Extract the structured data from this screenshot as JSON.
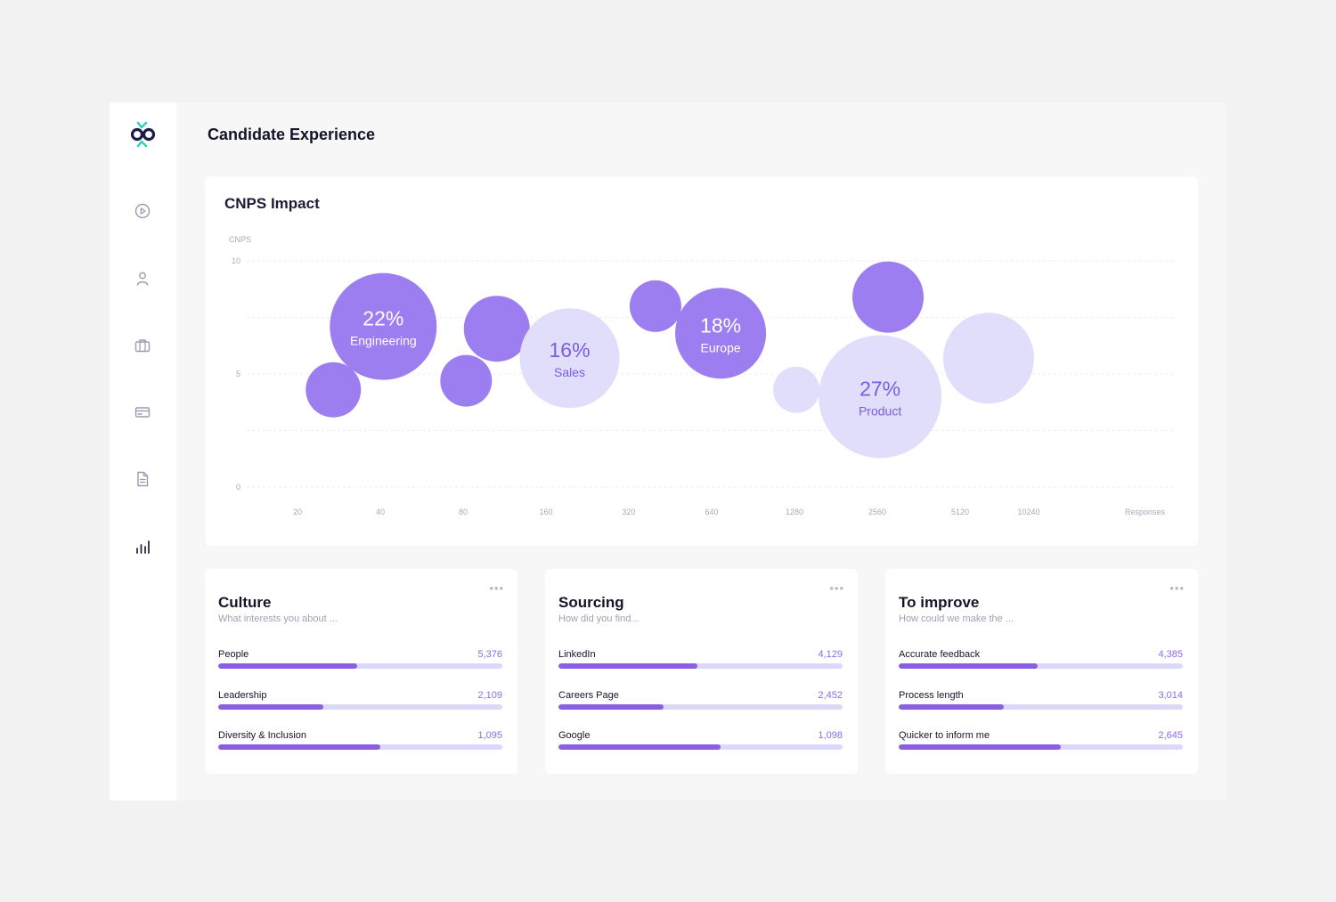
{
  "header": {
    "title": "Candidate Experience"
  },
  "sidebar": {
    "items": [
      {
        "name": "play-circle-icon",
        "active": false
      },
      {
        "name": "user-icon",
        "active": false
      },
      {
        "name": "briefcase-icon",
        "active": false
      },
      {
        "name": "credit-card-icon",
        "active": false
      },
      {
        "name": "document-icon",
        "active": false
      },
      {
        "name": "bar-chart-icon",
        "active": true
      }
    ]
  },
  "colors": {
    "accent": "#8a5fe3",
    "bubble_dark": "#9d7ef0",
    "bubble_light": "#e1defc",
    "track": "#dcd8fb"
  },
  "chart_data": {
    "type": "bubble",
    "title": "CNPS Impact",
    "ylabel": "CNPS",
    "xlabel": "Responses",
    "ylim": [
      0,
      10
    ],
    "y_ticks": [
      "10",
      "5",
      "0"
    ],
    "x_scale": "log2",
    "x_ticks": [
      "20",
      "40",
      "80",
      "160",
      "320",
      "640",
      "1280",
      "2560",
      "5120",
      "10240"
    ],
    "grid": true,
    "bubbles": [
      {
        "x": 27,
        "y": 4.3,
        "size": 31,
        "shade": "dark",
        "pct": "",
        "label": ""
      },
      {
        "x": 41,
        "y": 7.1,
        "size": 60,
        "shade": "dark",
        "pct": "22%",
        "label": "Engineering"
      },
      {
        "x": 82,
        "y": 4.7,
        "size": 29,
        "shade": "dark",
        "pct": "",
        "label": ""
      },
      {
        "x": 106,
        "y": 7.0,
        "size": 37,
        "shade": "dark",
        "pct": "",
        "label": ""
      },
      {
        "x": 195,
        "y": 5.7,
        "size": 56,
        "shade": "light",
        "pct": "16%",
        "label": "Sales"
      },
      {
        "x": 400,
        "y": 8.0,
        "size": 29,
        "shade": "dark",
        "pct": "",
        "label": ""
      },
      {
        "x": 690,
        "y": 6.8,
        "size": 51,
        "shade": "dark",
        "pct": "18%",
        "label": "Europe"
      },
      {
        "x": 1300,
        "y": 4.3,
        "size": 26,
        "shade": "light",
        "pct": "",
        "label": ""
      },
      {
        "x": 2620,
        "y": 4.0,
        "size": 69,
        "shade": "light",
        "pct": "27%",
        "label": "Product"
      },
      {
        "x": 2800,
        "y": 8.4,
        "size": 40,
        "shade": "dark",
        "pct": "",
        "label": ""
      },
      {
        "x": 6500,
        "y": 5.7,
        "size": 51,
        "shade": "light",
        "pct": "",
        "label": ""
      }
    ]
  },
  "cards": [
    {
      "title": "Culture",
      "subtitle": "What interests you about ...",
      "more": "•••",
      "rows": [
        {
          "label": "People",
          "value": "5,376",
          "progress": 0.49
        },
        {
          "label": "Leadership",
          "value": "2,109",
          "progress": 0.37
        },
        {
          "label": "Diversity & Inclusion",
          "value": "1,095",
          "progress": 0.57
        }
      ]
    },
    {
      "title": "Sourcing",
      "subtitle": "How did you find...",
      "more": "•••",
      "rows": [
        {
          "label": "LinkedIn",
          "value": "4,129",
          "progress": 0.49
        },
        {
          "label": "Careers Page",
          "value": "2,452",
          "progress": 0.37
        },
        {
          "label": "Google",
          "value": "1,098",
          "progress": 0.57
        }
      ]
    },
    {
      "title": "To improve",
      "subtitle": "How could we make the ...",
      "more": "•••",
      "rows": [
        {
          "label": "Accurate feedback",
          "value": "4,385",
          "progress": 0.49
        },
        {
          "label": "Process length",
          "value": "3,014",
          "progress": 0.37
        },
        {
          "label": "Quicker to inform me",
          "value": "2,645",
          "progress": 0.57
        }
      ]
    }
  ]
}
